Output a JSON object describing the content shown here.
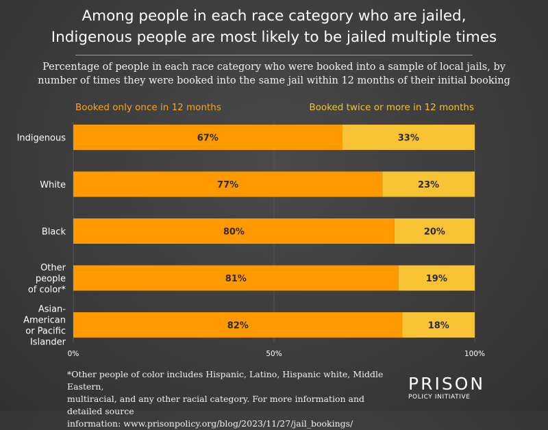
{
  "header": {
    "title_line1": "Among people in each race category who are jailed,",
    "title_line2": "Indigenous people are most likely to be jailed multiple times",
    "subtitle_line1": "Percentage of people in each race category who were booked into a sample of local jails, by",
    "subtitle_line2": "number of times they were booked into the same jail within 12 months of their initial booking"
  },
  "legend": {
    "left": "Booked only once in 12 months",
    "right": "Booked twice or more in 12 months"
  },
  "colors": {
    "once": "#ff9900",
    "twice": "#f7c234",
    "legend_once": "#f5a623",
    "legend_twice": "#f2c233",
    "grid": "#555555"
  },
  "chart_data": {
    "type": "bar",
    "orientation": "horizontal",
    "stacked": true,
    "categories": [
      [
        "Indigenous"
      ],
      [
        "White"
      ],
      [
        "Black"
      ],
      [
        "Other",
        "people",
        "of color*"
      ],
      [
        "Asian-",
        "American",
        "or Pacific",
        "Islander"
      ]
    ],
    "series": [
      {
        "name": "Booked only once in 12 months",
        "values": [
          67,
          77,
          80,
          81,
          82
        ]
      },
      {
        "name": "Booked twice or more in 12 months",
        "values": [
          33,
          23,
          20,
          19,
          18
        ]
      }
    ],
    "value_labels": [
      [
        "67%",
        "33%"
      ],
      [
        "77%",
        "23%"
      ],
      [
        "80%",
        "20%"
      ],
      [
        "81%",
        "19%"
      ],
      [
        "82%",
        "18%"
      ]
    ],
    "xlim": [
      0,
      100
    ],
    "xticks": [
      "0%",
      "50%",
      "100%"
    ],
    "grid": true
  },
  "footnote": {
    "line1": "*Other people of color includes Hispanic, Latino, Hispanic white, Middle Eastern,",
    "line2": "multiracial, and any other racial category. For more information and detailed source",
    "line3": "information: www.prisonpolicy.org/blog/2023/11/27/jail_bookings/"
  },
  "logo": {
    "top": "PRISON",
    "bottom": "POLICY INITIATIVE"
  }
}
